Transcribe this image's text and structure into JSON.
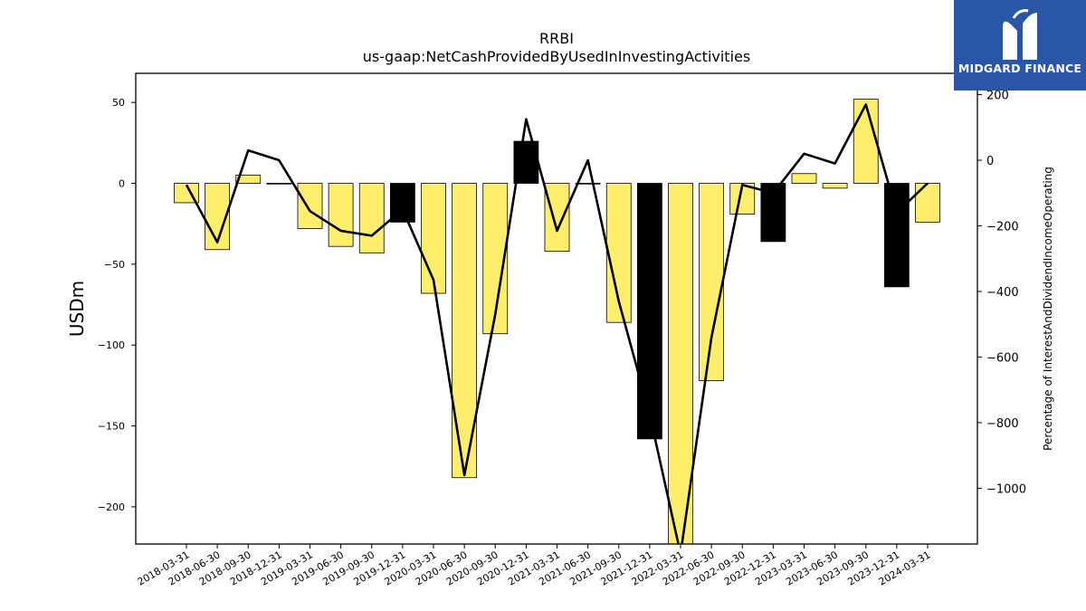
{
  "chart_data": {
    "type": "bar+line",
    "title": "RRBI",
    "subtitle": "us-gaap:NetCashProvidedByUsedInInvestingActivities",
    "ylabel": "USDm",
    "y2label": "Percentage of InterestAndDividendIncomeOperating",
    "ylim": [
      -223,
      68
    ],
    "y2lim": [
      -1170,
      265
    ],
    "yticks": [
      50,
      0,
      -50,
      -100,
      -150,
      -200
    ],
    "y2ticks": [
      200,
      0,
      -200,
      -400,
      -600,
      -800,
      -1000
    ],
    "categories": [
      "2018-03-31",
      "2018-06-30",
      "2018-09-30",
      "2018-12-31",
      "2019-03-31",
      "2019-06-30",
      "2019-09-30",
      "2019-12-31",
      "2020-03-31",
      "2020-06-30",
      "2020-09-30",
      "2020-12-31",
      "2021-03-31",
      "2021-06-30",
      "2021-09-30",
      "2021-12-31",
      "2022-03-31",
      "2022-06-30",
      "2022-09-30",
      "2022-12-31",
      "2023-03-31",
      "2023-06-30",
      "2023-09-30",
      "2023-12-31",
      "2024-03-31"
    ],
    "bars": {
      "name": "",
      "values": [
        -12,
        -41,
        5,
        0,
        -28,
        -39,
        -43,
        -24,
        -68,
        -182,
        -93,
        26,
        -42,
        0,
        -86,
        -158,
        -232,
        -122,
        -19,
        -36,
        6,
        -3,
        52,
        -64,
        -24
      ],
      "highlight": [
        false,
        false,
        false,
        false,
        false,
        false,
        false,
        true,
        false,
        false,
        false,
        true,
        false,
        false,
        false,
        true,
        false,
        false,
        false,
        true,
        false,
        false,
        false,
        true,
        false
      ]
    },
    "line": {
      "name": "",
      "values": [
        -75,
        -250,
        30,
        0,
        -155,
        -215,
        -230,
        -150,
        -365,
        -960,
        -470,
        125,
        -215,
        0,
        -430,
        -775,
        -1200,
        -540,
        -75,
        -100,
        20,
        -10,
        170,
        -160,
        -70
      ]
    },
    "colors": {
      "bar": "#ffee6b",
      "bar_highlight": "#000000",
      "line": "#000000"
    },
    "legend": "none",
    "grid": false
  },
  "logo": {
    "text": "MIDGARD FINANCE",
    "icon": "midgard-logo-mark"
  }
}
